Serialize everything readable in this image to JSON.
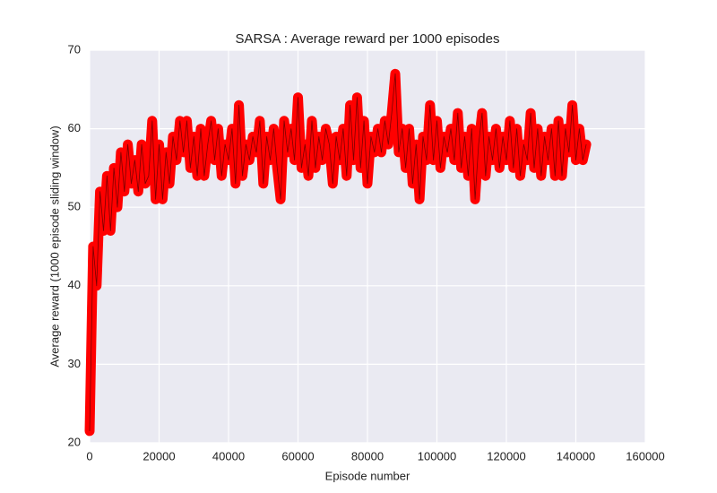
{
  "chart_data": {
    "type": "line",
    "title": "SARSA : Average reward per 1000 episodes",
    "x_label": "Episode number",
    "y_label": "Average reward (1000 episode sliding window)",
    "x": [
      0,
      1000,
      2000,
      3000,
      4000,
      5000,
      6000,
      7000,
      8000,
      9000,
      10000,
      11000,
      12000,
      13000,
      14000,
      15000,
      16000,
      17000,
      18000,
      19000,
      20000,
      21000,
      22000,
      23000,
      24000,
      25000,
      26000,
      27000,
      28000,
      29000,
      30000,
      31000,
      32000,
      33000,
      34000,
      35000,
      36000,
      37000,
      38000,
      39000,
      40000,
      41000,
      42000,
      43000,
      44000,
      45000,
      46000,
      47000,
      48000,
      49000,
      50000,
      51000,
      52000,
      53000,
      54000,
      55000,
      56000,
      57000,
      58000,
      59000,
      60000,
      61000,
      62000,
      63000,
      64000,
      65000,
      66000,
      67000,
      68000,
      69000,
      70000,
      71000,
      72000,
      73000,
      74000,
      75000,
      76000,
      77000,
      78000,
      79000,
      80000,
      81000,
      82000,
      83000,
      84000,
      85000,
      86000,
      87000,
      88000,
      89000,
      90000,
      91000,
      92000,
      93000,
      94000,
      95000,
      96000,
      97000,
      98000,
      99000,
      100000,
      101000,
      102000,
      103000,
      104000,
      105000,
      106000,
      107000,
      108000,
      109000,
      110000,
      111000,
      112000,
      113000,
      114000,
      115000,
      116000,
      117000,
      118000,
      119000,
      120000,
      121000,
      122000,
      123000,
      124000,
      125000,
      126000,
      127000,
      128000,
      129000,
      130000,
      131000,
      132000,
      133000,
      134000,
      135000,
      136000,
      137000,
      138000,
      139000,
      140000,
      141000,
      142000,
      143000
    ],
    "series": [
      {
        "name": "SARSA",
        "color": "#ff0000",
        "values": [
          21.5,
          45,
          40,
          52,
          47,
          54,
          47,
          55,
          50,
          57,
          52,
          58,
          53,
          56,
          52,
          58,
          53,
          54,
          61,
          51,
          58,
          51,
          57,
          53,
          59,
          56,
          61,
          57,
          61,
          55,
          59,
          54,
          60,
          54,
          58,
          61,
          56,
          60,
          54,
          58,
          56,
          60,
          53,
          63,
          54,
          58,
          56,
          59,
          57,
          61,
          53,
          59,
          56,
          60,
          55,
          51,
          61,
          57,
          60,
          56,
          64,
          55,
          58,
          54,
          61,
          55,
          59,
          56,
          60,
          58,
          53,
          59,
          56,
          60,
          54,
          63,
          56,
          64,
          55,
          61,
          53,
          59,
          57,
          60,
          57,
          61,
          58,
          62,
          67,
          57,
          60,
          55,
          60,
          53,
          58,
          51,
          59,
          56,
          63,
          56,
          61,
          55,
          59,
          57,
          60,
          56,
          62,
          55,
          59,
          54,
          60,
          51,
          58,
          62,
          54,
          59,
          56,
          60,
          55,
          59,
          56,
          61,
          55,
          60,
          54,
          58,
          56,
          62,
          55,
          60,
          54,
          59,
          56,
          60,
          54,
          61,
          54,
          60,
          57,
          63,
          56,
          60,
          56,
          58
        ]
      }
    ],
    "xlim": [
      0,
      160000
    ],
    "ylim": [
      20,
      70
    ],
    "xticks": [
      0,
      20000,
      40000,
      60000,
      80000,
      100000,
      120000,
      140000,
      160000
    ],
    "yticks": [
      20,
      30,
      40,
      50,
      60,
      70
    ],
    "grid": true
  }
}
